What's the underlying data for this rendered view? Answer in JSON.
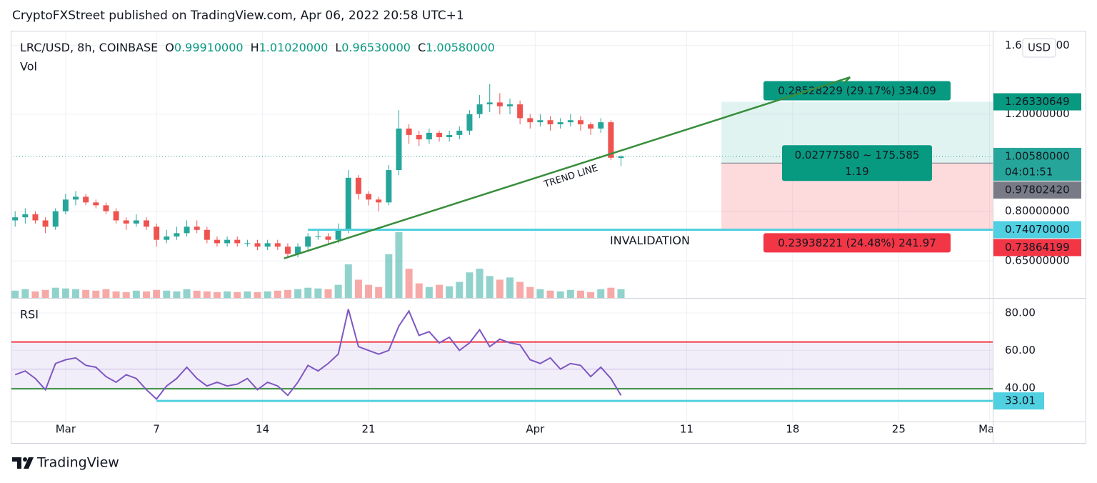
{
  "header": {
    "byline": "CryptoFXStreet published on TradingView.com, Apr 06, 2022 20:58 UTC+1"
  },
  "footer": {
    "brand": "TradingView"
  },
  "chart_data": {
    "type": "candlestick",
    "legend": {
      "symbol": "LRC/USD, 8h, COINBASE",
      "ohlc": [
        {
          "key": "O",
          "value": "0.99910000"
        },
        {
          "key": "H",
          "value": "1.01020000"
        },
        {
          "key": "L",
          "value": "0.96530000"
        },
        {
          "key": "C",
          "value": "1.00580000"
        }
      ]
    },
    "currency": "USD",
    "log_scale": true,
    "grid": true,
    "up_color": "#26a69a",
    "down_color": "#ef5350",
    "x": [
      "2022-02-25T16:00",
      "2022-02-26T08:00",
      "2022-02-27T00:00",
      "2022-02-27T16:00",
      "2022-02-28T08:00",
      "2022-03-01T00:00",
      "2022-03-01T16:00",
      "2022-03-02T08:00",
      "2022-03-03T00:00",
      "2022-03-03T16:00",
      "2022-03-04T08:00",
      "2022-03-05T00:00",
      "2022-03-05T16:00",
      "2022-03-06T08:00",
      "2022-03-07T00:00",
      "2022-03-07T16:00",
      "2022-03-08T08:00",
      "2022-03-09T00:00",
      "2022-03-09T16:00",
      "2022-03-10T08:00",
      "2022-03-11T00:00",
      "2022-03-11T16:00",
      "2022-03-12T08:00",
      "2022-03-13T00:00",
      "2022-03-13T16:00",
      "2022-03-14T08:00",
      "2022-03-15T00:00",
      "2022-03-15T16:00",
      "2022-03-16T08:00",
      "2022-03-17T00:00",
      "2022-03-17T16:00",
      "2022-03-18T08:00",
      "2022-03-19T00:00",
      "2022-03-19T16:00",
      "2022-03-20T08:00",
      "2022-03-21T00:00",
      "2022-03-21T16:00",
      "2022-03-22T08:00",
      "2022-03-23T00:00",
      "2022-03-23T16:00",
      "2022-03-24T08:00",
      "2022-03-25T00:00",
      "2022-03-25T16:00",
      "2022-03-26T08:00",
      "2022-03-27T00:00",
      "2022-03-27T16:00",
      "2022-03-28T08:00",
      "2022-03-29T00:00",
      "2022-03-29T16:00",
      "2022-03-30T08:00",
      "2022-03-31T00:00",
      "2022-03-31T16:00",
      "2022-04-01T08:00",
      "2022-04-02T00:00",
      "2022-04-02T16:00",
      "2022-04-03T08:00",
      "2022-04-04T00:00",
      "2022-04-04T16:00",
      "2022-04-05T08:00",
      "2022-04-06T00:00",
      "2022-04-06T16:00"
    ],
    "open": [
      0.77,
      0.78,
      0.79,
      0.77,
      0.75,
      0.8,
      0.84,
      0.85,
      0.83,
      0.82,
      0.8,
      0.77,
      0.76,
      0.77,
      0.75,
      0.71,
      0.72,
      0.73,
      0.75,
      0.74,
      0.71,
      0.7,
      0.71,
      0.7,
      0.7,
      0.69,
      0.7,
      0.69,
      0.67,
      0.69,
      0.72,
      0.72,
      0.71,
      0.74,
      0.92,
      0.86,
      0.84,
      0.83,
      0.95,
      1.13,
      1.1,
      1.08,
      1.11,
      1.09,
      1.1,
      1.12,
      1.2,
      1.25,
      1.26,
      1.24,
      1.25,
      1.18,
      1.16,
      1.17,
      1.15,
      1.16,
      1.17,
      1.15,
      1.13,
      1.16,
      0.9991
    ],
    "high": [
      0.8,
      0.81,
      0.8,
      0.78,
      0.81,
      0.86,
      0.87,
      0.86,
      0.84,
      0.83,
      0.81,
      0.78,
      0.79,
      0.78,
      0.76,
      0.74,
      0.75,
      0.77,
      0.77,
      0.75,
      0.72,
      0.72,
      0.72,
      0.71,
      0.71,
      0.71,
      0.71,
      0.7,
      0.7,
      0.73,
      0.74,
      0.73,
      0.76,
      0.95,
      0.93,
      0.87,
      0.85,
      0.97,
      1.22,
      1.15,
      1.12,
      1.13,
      1.12,
      1.12,
      1.14,
      1.22,
      1.3,
      1.36,
      1.31,
      1.28,
      1.27,
      1.2,
      1.2,
      1.19,
      1.18,
      1.2,
      1.19,
      1.16,
      1.18,
      1.17,
      1.0102
    ],
    "low": [
      0.75,
      0.76,
      0.76,
      0.73,
      0.74,
      0.79,
      0.82,
      0.82,
      0.81,
      0.79,
      0.76,
      0.74,
      0.75,
      0.74,
      0.69,
      0.7,
      0.71,
      0.72,
      0.73,
      0.7,
      0.69,
      0.69,
      0.69,
      0.69,
      0.68,
      0.68,
      0.68,
      0.66,
      0.66,
      0.68,
      0.71,
      0.7,
      0.7,
      0.73,
      0.84,
      0.82,
      0.8,
      0.82,
      0.93,
      1.06,
      1.05,
      1.06,
      1.07,
      1.07,
      1.08,
      1.1,
      1.18,
      1.21,
      1.2,
      1.2,
      1.15,
      1.13,
      1.14,
      1.12,
      1.13,
      1.14,
      1.12,
      1.1,
      1.11,
      0.99,
      0.9653
    ],
    "close": [
      0.78,
      0.79,
      0.77,
      0.75,
      0.8,
      0.84,
      0.85,
      0.83,
      0.82,
      0.8,
      0.77,
      0.76,
      0.77,
      0.75,
      0.71,
      0.72,
      0.73,
      0.75,
      0.74,
      0.71,
      0.7,
      0.71,
      0.7,
      0.7,
      0.69,
      0.7,
      0.69,
      0.67,
      0.69,
      0.72,
      0.72,
      0.71,
      0.74,
      0.92,
      0.86,
      0.84,
      0.83,
      0.95,
      1.13,
      1.1,
      1.08,
      1.11,
      1.09,
      1.1,
      1.12,
      1.2,
      1.25,
      1.26,
      1.24,
      1.25,
      1.18,
      1.16,
      1.17,
      1.15,
      1.16,
      1.17,
      1.15,
      1.13,
      1.16,
      1.0,
      1.0058
    ],
    "volume": {
      "label": "Vol",
      "values": [
        10,
        12,
        9,
        11,
        14,
        13,
        12,
        11,
        10,
        12,
        9,
        8,
        10,
        9,
        11,
        10,
        9,
        12,
        10,
        9,
        8,
        9,
        8,
        9,
        8,
        9,
        10,
        11,
        12,
        14,
        13,
        12,
        18,
        46,
        25,
        18,
        15,
        60,
        90,
        40,
        20,
        15,
        18,
        16,
        22,
        35,
        40,
        30,
        25,
        28,
        22,
        15,
        12,
        10,
        9,
        11,
        10,
        8,
        12,
        14,
        12
      ]
    },
    "xlim": [
      "2022-02-25T09:00",
      "2022-05-01T05:00"
    ],
    "xticks": [
      {
        "value": "2022-03-01T00:00",
        "label": "Mar"
      },
      {
        "value": "2022-03-07T00:00",
        "label": "7"
      },
      {
        "value": "2022-03-14T00:00",
        "label": "14"
      },
      {
        "value": "2022-03-21T00:00",
        "label": "21"
      },
      {
        "value": "2022-04-01T00:00",
        "label": "Apr"
      },
      {
        "value": "2022-04-11T00:00",
        "label": "11"
      },
      {
        "value": "2022-04-18T00:00",
        "label": "18"
      },
      {
        "value": "2022-04-25T00:00",
        "label": "25"
      },
      {
        "value": "2022-05-01T00:00",
        "label": "May"
      }
    ],
    "ylim": [
      0.557,
      1.7
    ],
    "yticks": [
      {
        "value": 0.65,
        "label": "0.65000000"
      },
      {
        "value": 0.8,
        "label": "0.80000000"
      },
      {
        "value": 1.2,
        "label": "1.20000000"
      },
      {
        "value": 1.6,
        "label": "1.60000000"
      }
    ],
    "axis_markers": [
      {
        "value": 1.26330649,
        "label": "1.26330649",
        "color": "#089981"
      },
      {
        "value": 1.0058,
        "label": "1.00580000",
        "sublabel": "04:01:51",
        "color": "#26a69a"
      },
      {
        "value": 0.9780242,
        "label": "0.97802420",
        "color": "#787b86"
      },
      {
        "value": 0.7407,
        "label": "0.74070000",
        "color": "#50d0e0"
      },
      {
        "value": 0.73864199,
        "label": "0.73864199",
        "color": "#f23645"
      }
    ],
    "trend_line": {
      "label": "TREND LINE",
      "color": "#388e3c",
      "points": [
        {
          "x": "2022-03-15T10:00",
          "price": 0.657
        },
        {
          "x": "2022-04-21T19:00",
          "price": 1.4
        }
      ]
    },
    "invalidation": {
      "label": "INVALIDATION",
      "price": 0.7407,
      "start": "2022-03-17T00:00",
      "color": "#50d0e0"
    },
    "position": {
      "start": "2022-04-13T07:00",
      "entry": 0.9780242,
      "target": 1.26330649,
      "stop": 0.73864199,
      "target_label": "0.28528229 (29.17%) 334.09",
      "open_label": "0.02777580 ~ 175.585",
      "open_ratio": "1.19",
      "stop_label": "0.23938221 (24.48%) 241.97"
    },
    "rsi": {
      "label": "RSI",
      "color": "#7e57c2",
      "values": [
        47,
        49,
        45,
        39,
        53,
        55,
        56,
        52,
        51,
        46,
        43,
        47,
        45,
        39,
        34,
        41,
        45,
        51,
        45,
        41,
        43,
        41,
        42,
        45,
        39,
        43,
        41,
        36,
        43,
        52,
        49,
        53,
        58,
        82,
        62,
        60,
        58,
        60,
        73,
        81,
        68,
        70,
        64,
        67,
        60,
        64,
        71,
        62,
        66,
        64,
        63,
        55,
        53,
        56,
        50,
        53,
        52,
        46,
        51,
        45,
        36
      ],
      "ylim": [
        22,
        88
      ],
      "yticks": [
        {
          "value": 40,
          "label": "40.00"
        },
        {
          "value": 60,
          "label": "60.00"
        },
        {
          "value": 80,
          "label": "80.00"
        }
      ],
      "upper": 64.5,
      "lower": 39.5,
      "middle": 50,
      "support": {
        "value": 33.01,
        "label": "33.01",
        "start": "2022-03-07T00:00",
        "color": "#50d0e0"
      }
    }
  }
}
